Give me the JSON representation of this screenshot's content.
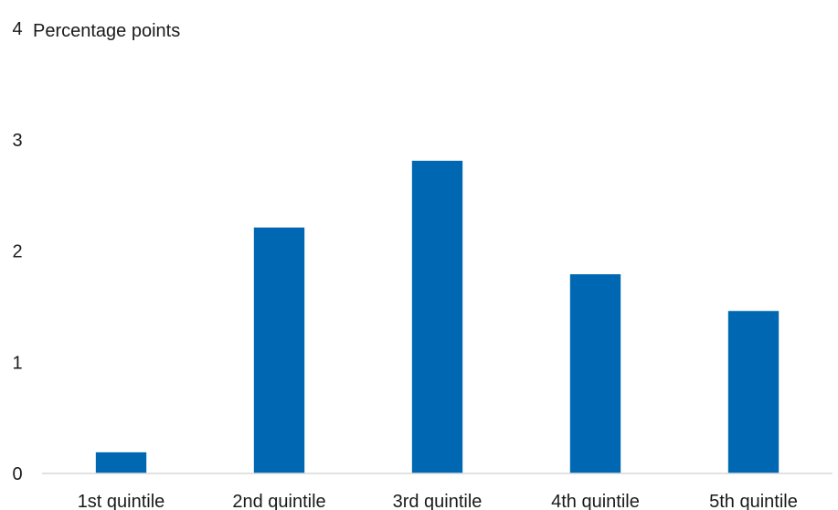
{
  "chart_data": {
    "type": "bar",
    "ylabel": "Percentage points",
    "categories": [
      "1st quintile",
      "2nd quintile",
      "3rd quintile",
      "4th quintile",
      "5th quintile"
    ],
    "values": [
      0.19,
      2.21,
      2.81,
      1.79,
      1.46
    ],
    "ylim": [
      0,
      4
    ],
    "yticks": [
      0,
      1,
      2,
      3,
      4
    ],
    "grid": false,
    "legend": "none",
    "bar_color": "#0068b3",
    "axis_color": "#d9d9d9"
  }
}
